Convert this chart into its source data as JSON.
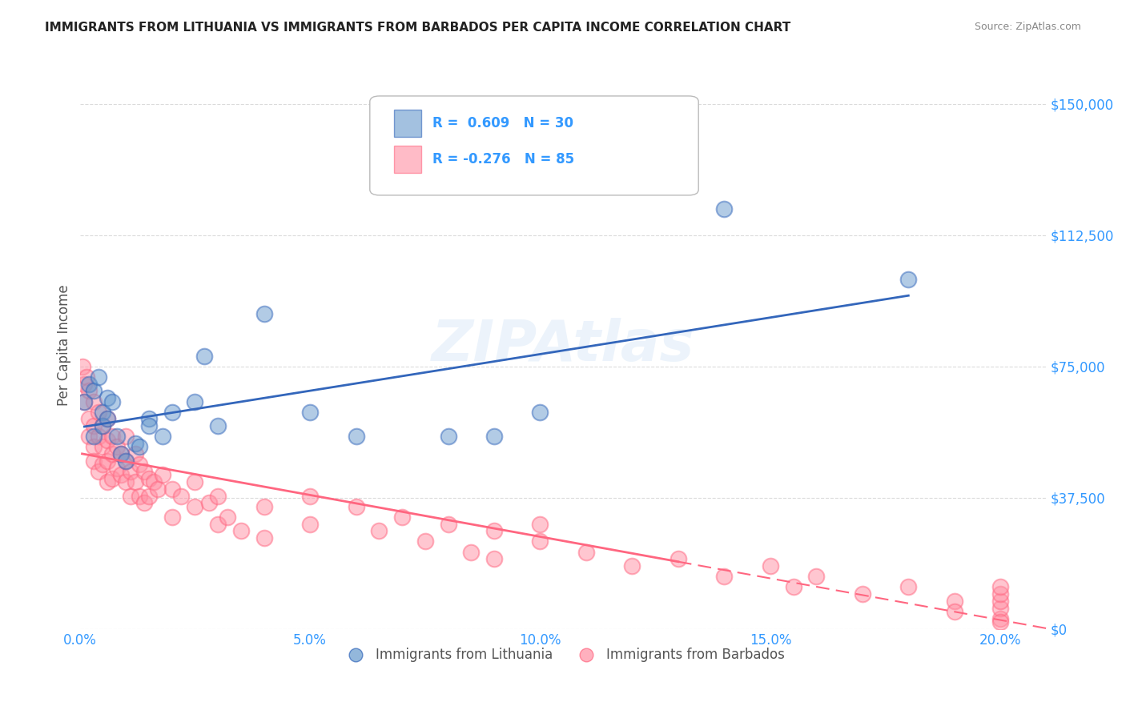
{
  "title": "IMMIGRANTS FROM LITHUANIA VS IMMIGRANTS FROM BARBADOS PER CAPITA INCOME CORRELATION CHART",
  "source": "Source: ZipAtlas.com",
  "ylabel": "Per Capita Income",
  "xlabel_ticks": [
    "0.0%",
    "5.0%",
    "10.0%",
    "15.0%",
    "20.0%"
  ],
  "xlabel_vals": [
    0.0,
    0.05,
    0.1,
    0.15,
    0.2
  ],
  "ytick_labels": [
    "$0",
    "$37,500",
    "$75,000",
    "$112,500",
    "$150,000"
  ],
  "ytick_vals": [
    0,
    37500,
    75000,
    112500,
    150000
  ],
  "ylim": [
    0,
    162000
  ],
  "xlim": [
    0.0,
    0.21
  ],
  "legend_1_label": "Immigrants from Lithuania",
  "legend_2_label": "Immigrants from Barbados",
  "R_lithuania": 0.609,
  "N_lithuania": 30,
  "R_barbados": -0.276,
  "N_barbados": 85,
  "color_blue": "#6699CC",
  "color_pink": "#FF8FA3",
  "color_blue_line": "#3366BB",
  "color_pink_line": "#FF6680",
  "color_axis_labels": "#3399FF",
  "watermark": "ZIPAtlas",
  "lithuania_x": [
    0.001,
    0.002,
    0.003,
    0.003,
    0.004,
    0.005,
    0.005,
    0.006,
    0.006,
    0.007,
    0.008,
    0.009,
    0.01,
    0.012,
    0.013,
    0.015,
    0.015,
    0.018,
    0.02,
    0.025,
    0.027,
    0.03,
    0.04,
    0.05,
    0.06,
    0.08,
    0.09,
    0.1,
    0.14,
    0.18
  ],
  "lithuania_y": [
    65000,
    70000,
    55000,
    68000,
    72000,
    62000,
    58000,
    60000,
    66000,
    65000,
    55000,
    50000,
    48000,
    53000,
    52000,
    60000,
    58000,
    55000,
    62000,
    65000,
    78000,
    58000,
    90000,
    62000,
    55000,
    55000,
    55000,
    62000,
    120000,
    100000
  ],
  "barbados_x": [
    0.0005,
    0.001,
    0.001,
    0.0015,
    0.002,
    0.002,
    0.002,
    0.003,
    0.003,
    0.003,
    0.003,
    0.004,
    0.004,
    0.004,
    0.005,
    0.005,
    0.005,
    0.006,
    0.006,
    0.006,
    0.006,
    0.007,
    0.007,
    0.007,
    0.008,
    0.008,
    0.009,
    0.009,
    0.01,
    0.01,
    0.01,
    0.011,
    0.011,
    0.012,
    0.012,
    0.013,
    0.013,
    0.014,
    0.014,
    0.015,
    0.015,
    0.016,
    0.017,
    0.018,
    0.02,
    0.02,
    0.022,
    0.025,
    0.025,
    0.028,
    0.03,
    0.03,
    0.032,
    0.035,
    0.04,
    0.04,
    0.05,
    0.05,
    0.06,
    0.065,
    0.07,
    0.075,
    0.08,
    0.085,
    0.09,
    0.09,
    0.1,
    0.1,
    0.11,
    0.12,
    0.13,
    0.14,
    0.15,
    0.155,
    0.16,
    0.17,
    0.18,
    0.19,
    0.19,
    0.2,
    0.2,
    0.2,
    0.2,
    0.2,
    0.2
  ],
  "barbados_y": [
    75000,
    70000,
    65000,
    72000,
    68000,
    60000,
    55000,
    65000,
    58000,
    52000,
    48000,
    62000,
    55000,
    45000,
    58000,
    52000,
    47000,
    60000,
    54000,
    48000,
    42000,
    55000,
    50000,
    43000,
    52000,
    46000,
    50000,
    44000,
    48000,
    42000,
    55000,
    45000,
    38000,
    50000,
    42000,
    47000,
    38000,
    45000,
    36000,
    43000,
    38000,
    42000,
    40000,
    44000,
    40000,
    32000,
    38000,
    35000,
    42000,
    36000,
    30000,
    38000,
    32000,
    28000,
    35000,
    26000,
    38000,
    30000,
    35000,
    28000,
    32000,
    25000,
    30000,
    22000,
    28000,
    20000,
    25000,
    30000,
    22000,
    18000,
    20000,
    15000,
    18000,
    12000,
    15000,
    10000,
    12000,
    8000,
    5000,
    3000,
    6000,
    8000,
    10000,
    12000,
    2000
  ]
}
